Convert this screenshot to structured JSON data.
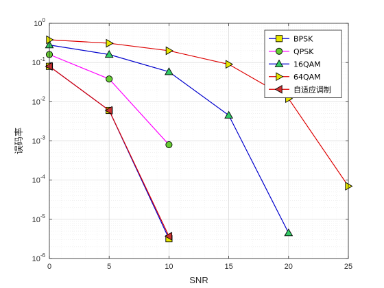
{
  "chart_data": {
    "type": "line",
    "xlabel": "SNR",
    "ylabel": "误码率",
    "xlim": [
      0,
      25
    ],
    "ylim": [
      1e-06,
      1
    ],
    "yscale": "log",
    "xticks": [
      0,
      5,
      10,
      15,
      20,
      25
    ],
    "yticks": [
      {
        "value": 1,
        "base": "10",
        "exp": "0"
      },
      {
        "value": 0.1,
        "base": "10",
        "exp": "-1"
      },
      {
        "value": 0.01,
        "base": "10",
        "exp": "-2"
      },
      {
        "value": 0.001,
        "base": "10",
        "exp": "-3"
      },
      {
        "value": 0.0001,
        "base": "10",
        "exp": "-4"
      },
      {
        "value": 1e-05,
        "base": "10",
        "exp": "-5"
      },
      {
        "value": 1e-06,
        "base": "10",
        "exp": "-6"
      }
    ],
    "grid": true,
    "minor_grid": true,
    "legend_position": "top-right",
    "series": [
      {
        "name": "BPSK",
        "color": "#0000cc",
        "marker": "square",
        "marker_fill": "#e6e600",
        "x": [
          0,
          5,
          10
        ],
        "y": [
          0.08,
          0.006,
          3.2e-06
        ]
      },
      {
        "name": "QPSK",
        "color": "#ff00ff",
        "marker": "circle",
        "marker_fill": "#66cc33",
        "x": [
          0,
          5,
          10
        ],
        "y": [
          0.16,
          0.038,
          0.0008
        ]
      },
      {
        "name": "16QAM",
        "color": "#0000cc",
        "marker": "triangle-up",
        "marker_fill": "#33cc66",
        "x": [
          0,
          5,
          10,
          15,
          20
        ],
        "y": [
          0.28,
          0.16,
          0.058,
          0.0045,
          4.5e-06
        ]
      },
      {
        "name": "64QAM",
        "color": "#dd0000",
        "marker": "triangle-right",
        "marker_fill": "#e6e600",
        "x": [
          0,
          5,
          10,
          15,
          20,
          25
        ],
        "y": [
          0.38,
          0.31,
          0.2,
          0.09,
          0.012,
          7e-05
        ]
      },
      {
        "name": "自适应调制",
        "color": "#dd0000",
        "marker": "triangle-left",
        "marker_fill": "#cc3333",
        "x": [
          0,
          5,
          10
        ],
        "y": [
          0.08,
          0.006,
          3.7e-06
        ]
      }
    ]
  }
}
